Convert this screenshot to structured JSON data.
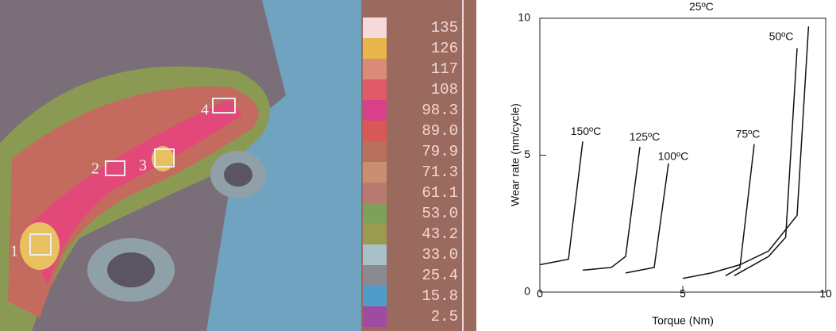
{
  "thermal_image": {
    "scale_labels": [
      "135",
      "126",
      "117",
      "108",
      "98.3",
      "89.0",
      "79.9",
      "71.3",
      "61.1",
      "53.0",
      "43.2",
      "33.0",
      "25.4",
      "15.8",
      "2.5"
    ],
    "region_labels": [
      "1",
      "2",
      "3",
      "4"
    ]
  },
  "chart_data": {
    "type": "line",
    "xlabel": "Torque (Nm)",
    "ylabel": "Wear rate (nm/cycle)",
    "xlim": [
      0,
      10
    ],
    "ylim": [
      0,
      10
    ],
    "xticks": [
      0,
      5,
      10
    ],
    "yticks": [
      0,
      5,
      10
    ],
    "series": [
      {
        "name": "150ºC",
        "color": "#111111",
        "x": [
          0,
          1,
          1.5
        ],
        "values": [
          1.0,
          1.2,
          5.5
        ]
      },
      {
        "name": "125ºC",
        "color": "#111111",
        "x": [
          1.5,
          2.5,
          3.0,
          3.5
        ],
        "values": [
          0.8,
          0.9,
          1.3,
          5.3
        ]
      },
      {
        "name": "100ºC",
        "color": "#111111",
        "x": [
          3.0,
          4.0,
          4.5
        ],
        "values": [
          0.7,
          0.9,
          4.7
        ]
      },
      {
        "name": "75ºC",
        "color": "#111111",
        "x": [
          6.5,
          7.0,
          7.5
        ],
        "values": [
          0.6,
          0.9,
          5.4
        ]
      },
      {
        "name": "50ºC",
        "color": "#111111",
        "x": [
          6.8,
          8.0,
          8.6,
          9.0
        ],
        "values": [
          0.6,
          1.3,
          2.0,
          8.9
        ]
      },
      {
        "name": "25ºC",
        "color": "#111111",
        "x": [
          5.0,
          6.0,
          7.0,
          8.0,
          9.0,
          9.4
        ],
        "values": [
          0.5,
          0.7,
          1.0,
          1.5,
          2.8,
          9.7
        ]
      }
    ]
  }
}
